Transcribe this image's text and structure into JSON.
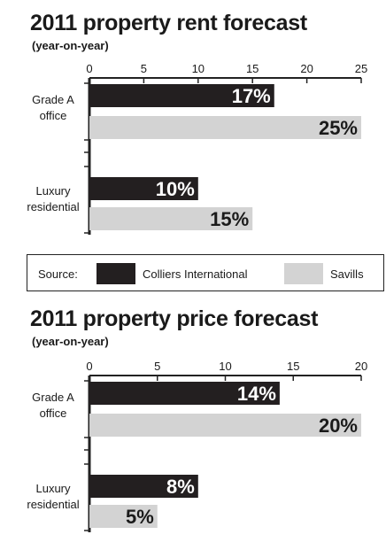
{
  "legend": {
    "source_label": "Source:",
    "entries": [
      {
        "name": "Colliers International",
        "color": "#231f20"
      },
      {
        "name": "Savills",
        "color": "#d3d3d3"
      }
    ]
  },
  "chart_data": [
    {
      "type": "bar",
      "orientation": "horizontal",
      "title": "2011 property rent forecast",
      "subtitle": "(year-on-year)",
      "categories": [
        "Grade A office",
        "Luxury residential"
      ],
      "category_lines": [
        [
          "Grade A",
          "office"
        ],
        [
          "Luxury",
          "residential"
        ]
      ],
      "series": [
        {
          "name": "Colliers International",
          "values": [
            17,
            10
          ],
          "color": "#231f20",
          "label_color": "#ffffff"
        },
        {
          "name": "Savills",
          "values": [
            25,
            15
          ],
          "color": "#d3d3d3",
          "label_color": "#1a1a1a"
        }
      ],
      "value_labels": [
        [
          "17%",
          "10%"
        ],
        [
          "25%",
          "15%"
        ]
      ],
      "xlim": [
        0,
        25
      ],
      "xticks": [
        0,
        5,
        10,
        15,
        20,
        25
      ],
      "legend": "bottom",
      "grid": false
    },
    {
      "type": "bar",
      "orientation": "horizontal",
      "title": "2011 property price forecast",
      "subtitle": "(year-on-year)",
      "categories": [
        "Grade A office",
        "Luxury residential"
      ],
      "category_lines": [
        [
          "Grade A",
          "office"
        ],
        [
          "Luxury",
          "residential"
        ]
      ],
      "series": [
        {
          "name": "Colliers International",
          "values": [
            14,
            8
          ],
          "color": "#231f20",
          "label_color": "#ffffff"
        },
        {
          "name": "Savills",
          "values": [
            20,
            5
          ],
          "color": "#d3d3d3",
          "label_color": "#1a1a1a"
        }
      ],
      "value_labels": [
        [
          "14%",
          "8%"
        ],
        [
          "20%",
          "5%"
        ]
      ],
      "xlim": [
        0,
        20
      ],
      "xticks": [
        0,
        5,
        10,
        15,
        20
      ],
      "legend": "bottom",
      "grid": false
    }
  ]
}
